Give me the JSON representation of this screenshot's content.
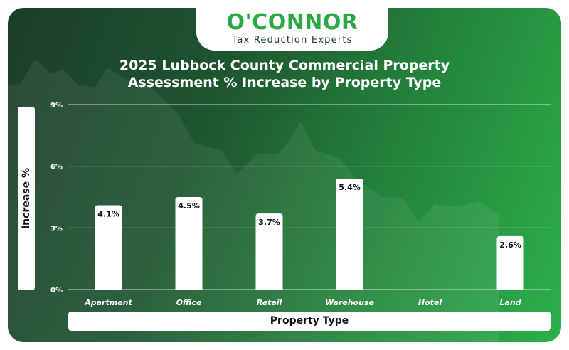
{
  "brand": {
    "name": "O'CONNOR",
    "tagline": "Tax Reduction Experts",
    "color": "#2aa845"
  },
  "chart_data": {
    "type": "bar",
    "title_lines": [
      "2025 Lubbock County Commercial Property",
      "Assessment % Increase by Property Type"
    ],
    "xlabel": "Property Type",
    "ylabel": "Increase %",
    "categories": [
      "Apartment",
      "Office",
      "Retail",
      "Warehouse",
      "Hotel",
      "Land"
    ],
    "values": [
      4.1,
      4.5,
      3.7,
      5.4,
      null,
      2.6
    ],
    "data_labels": [
      "4.1%",
      "4.5%",
      "3.7%",
      "5.4%",
      "",
      "2.6%"
    ],
    "y_ticks": [
      "0%",
      "3%",
      "6%",
      "9%"
    ],
    "y_tick_values": [
      0,
      3,
      6,
      9
    ],
    "ylim": [
      0,
      9
    ],
    "grid": true,
    "bar_color": "#ffffff"
  }
}
